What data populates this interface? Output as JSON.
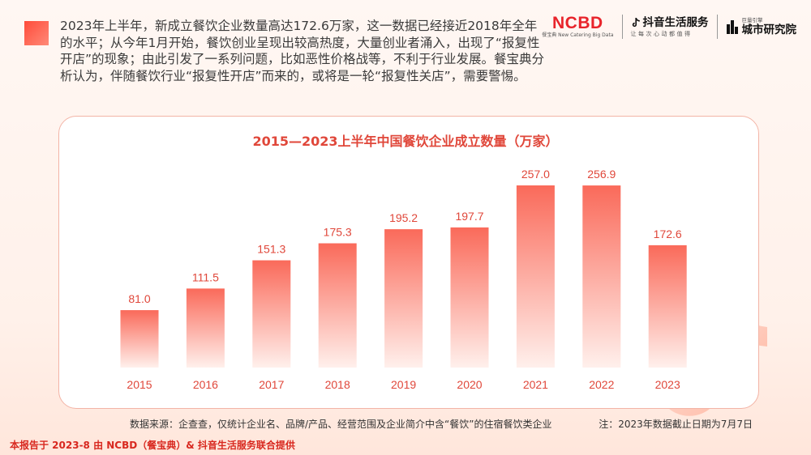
{
  "intro_text": "2023年上半年，新成立餐饮企业数量高达172.6万家，这一数据已经接近2018年全年的水平；从今年1月开始，餐饮创业呈现出较高热度，大量创业者涌入，出现了“报复性开店”的现象；由此引发了一系列问题，比如恶性价格战等，不利于行业发展。餐宝典分析认为，伴随餐饮行业“报复性开店”而来的，或将是一轮“报复性关店”，需要警惕。",
  "logos": {
    "ncbd_main": "NCBD",
    "ncbd_sub": "餐宝典 New Catering Big Data",
    "douyin_main": "抖音生活服务",
    "douyin_sub": "让每次心动都值得",
    "institute_small": "巨量引擎",
    "institute_main": "城市研究院"
  },
  "chart_data": {
    "type": "bar",
    "title": "2015—2023上半年中国餐饮企业成立数量（万家）",
    "categories": [
      "2015",
      "2016",
      "2017",
      "2018",
      "2019",
      "2020",
      "2021",
      "2022",
      "2023"
    ],
    "values": [
      81.0,
      111.5,
      151.3,
      175.3,
      195.2,
      197.7,
      257.0,
      256.9,
      172.6
    ],
    "value_labels": [
      "81.0",
      "111.5",
      "151.3",
      "175.3",
      "195.2",
      "197.7",
      "257.0",
      "256.9",
      "172.6"
    ],
    "xlabel": "",
    "ylabel": "",
    "ylim": [
      0,
      257.0
    ],
    "grid": false,
    "legend": "none",
    "bar_color_top": "#fa6a5a",
    "bar_color_bottom": "#fff0ec",
    "label_color": "#e0473a"
  },
  "source_text": "数据来源：企查查，仅统计企业名、品牌/产品、经营范围及企业简介中含“餐饮”的住宿餐饮类企业",
  "note_text": "注：2023年数据截止日期为7月7日",
  "footer_text": "本报告于 2023-8 由 NCBD（餐宝典）& 抖音生活服务联合提供"
}
